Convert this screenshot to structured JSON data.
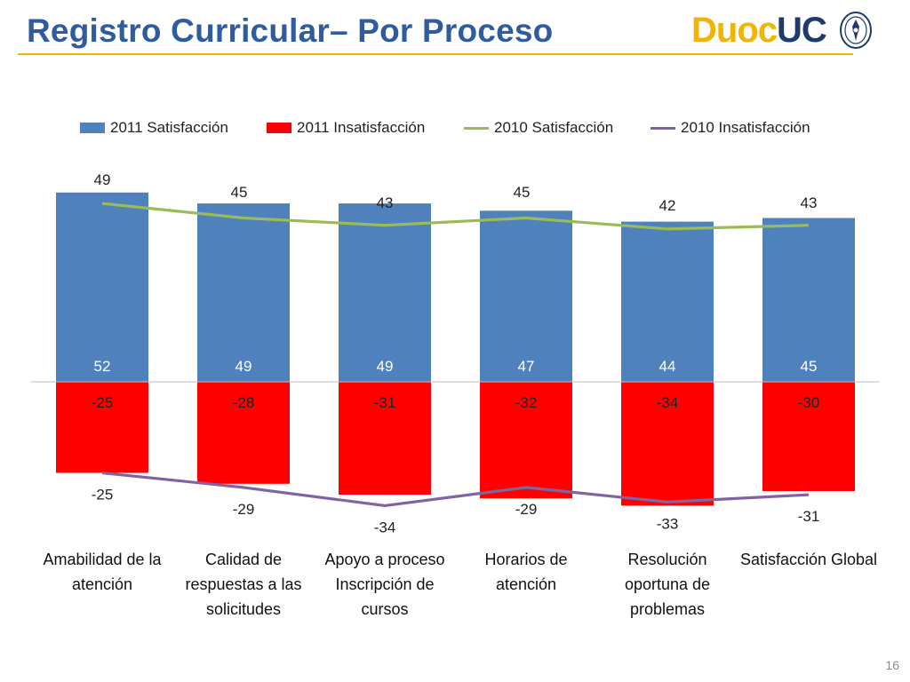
{
  "slide": {
    "title": "Registro Curricular– Por Proceso",
    "page_number": "16",
    "logo": {
      "part1": "Duoc",
      "part2": "UC"
    }
  },
  "colors": {
    "title": "#2E5C9E",
    "accent_rule": "#F2B400",
    "bar_satisfaction": "#4F81BD",
    "bar_dissatisfaction": "#FF0000",
    "line_satisfaction": "#9BBB59",
    "line_dissatisfaction": "#8064A2"
  },
  "chart_data": {
    "type": "bar",
    "categories": [
      "Amabilidad de la atención",
      "Calidad de respuestas a las solicitudes",
      "Apoyo a proceso Inscripción de cursos",
      "Horarios de atención",
      "Resolución oportuna de problemas",
      "Satisfacción Global"
    ],
    "series": [
      {
        "name": "2011 Satisfacción",
        "kind": "bar",
        "values": [
          52,
          49,
          49,
          47,
          44,
          45
        ]
      },
      {
        "name": "2011 Insatisfacción",
        "kind": "bar",
        "values": [
          -25,
          -28,
          -31,
          -32,
          -34,
          -30
        ]
      },
      {
        "name": "2010 Satisfacción",
        "kind": "line",
        "values": [
          49,
          45,
          43,
          45,
          42,
          43
        ]
      },
      {
        "name": "2010 Insatisfacción",
        "kind": "line",
        "values": [
          -25,
          -29,
          -34,
          -29,
          -33,
          -31
        ]
      }
    ],
    "legend_position": "top",
    "grid": false
  }
}
